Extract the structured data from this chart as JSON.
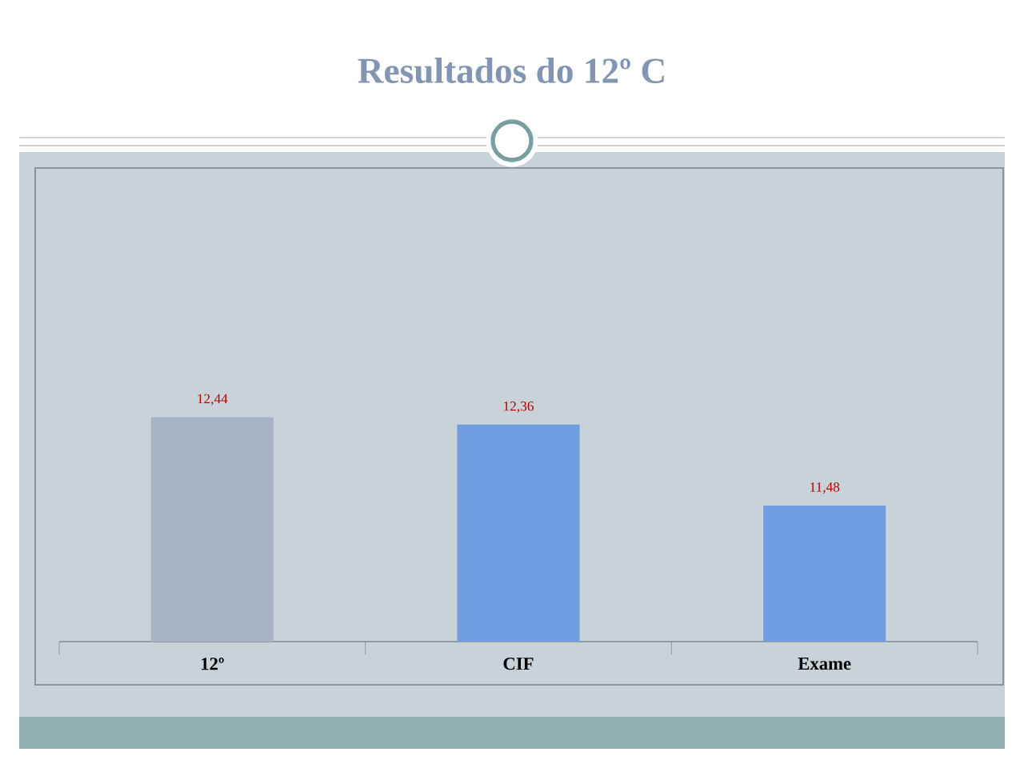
{
  "chart_data": {
    "type": "bar",
    "title": "Resultados do 12º C",
    "categories": [
      "12º",
      "CIF",
      "Exame"
    ],
    "values": [
      12.44,
      12.36,
      11.48
    ],
    "colors": [
      "#a9b3c6",
      "#6f9ddf",
      "#6f9ddf"
    ],
    "value_labels": [
      "12,44",
      "12,36",
      "11,48"
    ],
    "ylim": [
      10,
      15.15
    ]
  }
}
